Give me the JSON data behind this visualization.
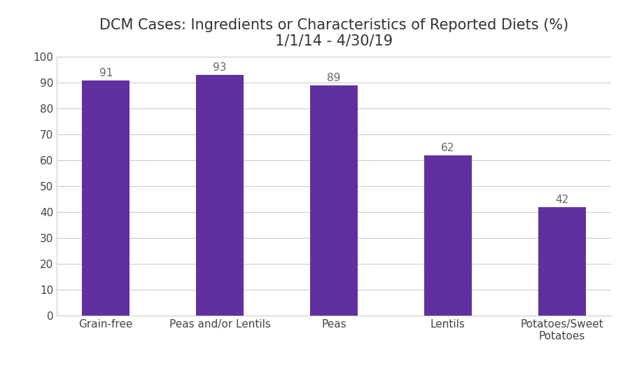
{
  "title_line1": "DCM Cases: Ingredients or Characteristics of Reported Diets (%)",
  "title_line2": "1/1/14 - 4/30/19",
  "categories": [
    "Grain-free",
    "Peas and/or Lentils",
    "Peas",
    "Lentils",
    "Potatoes/Sweet\nPotatoes"
  ],
  "values": [
    91,
    93,
    89,
    62,
    42
  ],
  "bar_color": "#6030a0",
  "ylim": [
    0,
    100
  ],
  "yticks": [
    0,
    10,
    20,
    30,
    40,
    50,
    60,
    70,
    80,
    90,
    100
  ],
  "background_color": "#ffffff",
  "grid_color": "#cccccc",
  "title_fontsize": 15,
  "tick_fontsize": 11,
  "bar_label_fontsize": 11,
  "bar_label_color": "#666666",
  "bar_width": 0.42
}
